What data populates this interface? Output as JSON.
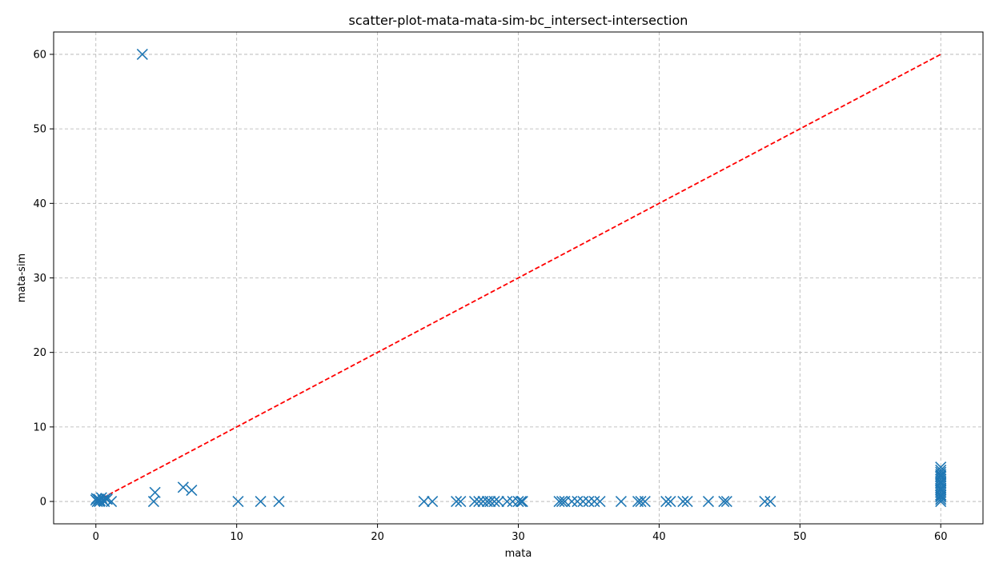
{
  "colors": {
    "series": "#1f77b4",
    "reference": "#ff0000",
    "grid": "#b0b0b0"
  },
  "chart_data": {
    "type": "scatter",
    "title": "scatter-plot-mata-mata-sim-bc_intersect-intersection",
    "xlabel": "mata",
    "ylabel": "mata-sim",
    "xlim": [
      -3,
      63
    ],
    "ylim": [
      -3,
      63
    ],
    "xticks": [
      0,
      10,
      20,
      30,
      40,
      50,
      60
    ],
    "yticks": [
      0,
      10,
      20,
      30,
      40,
      50,
      60
    ],
    "grid": true,
    "marker": "x",
    "reference_line": {
      "from": [
        0,
        0
      ],
      "to": [
        60,
        60
      ],
      "style": "dashed"
    },
    "x": [
      0.0,
      0.05,
      0.1,
      0.2,
      0.3,
      0.4,
      0.5,
      0.6,
      0.7,
      0.8,
      1.1,
      0.25,
      0.55,
      3.3,
      4.1,
      4.2,
      6.2,
      6.8,
      10.1,
      11.7,
      13.0,
      23.3,
      23.9,
      25.6,
      25.9,
      26.9,
      27.2,
      27.5,
      27.8,
      28.0,
      28.3,
      28.6,
      29.2,
      29.6,
      30.0,
      30.2,
      30.3,
      32.9,
      33.1,
      33.3,
      33.8,
      34.2,
      34.6,
      35.0,
      35.4,
      35.8,
      37.3,
      38.5,
      38.7,
      39.0,
      40.5,
      40.8,
      41.7,
      42.0,
      43.5,
      44.6,
      44.8,
      47.5,
      47.9,
      60,
      60,
      60,
      60,
      60,
      60,
      60,
      60,
      60,
      60,
      60,
      60,
      60,
      60,
      60,
      60,
      60,
      60,
      60,
      60
    ],
    "y": [
      0.2,
      0.4,
      0.0,
      0.3,
      0.1,
      0.5,
      0.2,
      0.0,
      0.4,
      0.3,
      0.0,
      0.0,
      0.1,
      60,
      0.0,
      1.2,
      1.9,
      1.5,
      0.0,
      0.0,
      0.0,
      0.0,
      0.0,
      0.0,
      0.0,
      0.0,
      0.0,
      0.0,
      0.0,
      0.0,
      0.0,
      0.0,
      0.0,
      0.0,
      0.0,
      0.0,
      0.0,
      0.0,
      0.0,
      0.0,
      0.0,
      0.0,
      0.0,
      0.0,
      0.0,
      0.0,
      0.0,
      0.0,
      0.0,
      0.0,
      0.0,
      0.0,
      0.0,
      0.0,
      0.0,
      0.0,
      0.0,
      0.0,
      0.0,
      0.0,
      0.3,
      0.6,
      0.9,
      1.2,
      1.5,
      1.8,
      2.1,
      2.4,
      2.7,
      3.0,
      3.3,
      3.6,
      3.9,
      4.2,
      4.6,
      0.8,
      1.6,
      2.5,
      3.4
    ]
  }
}
